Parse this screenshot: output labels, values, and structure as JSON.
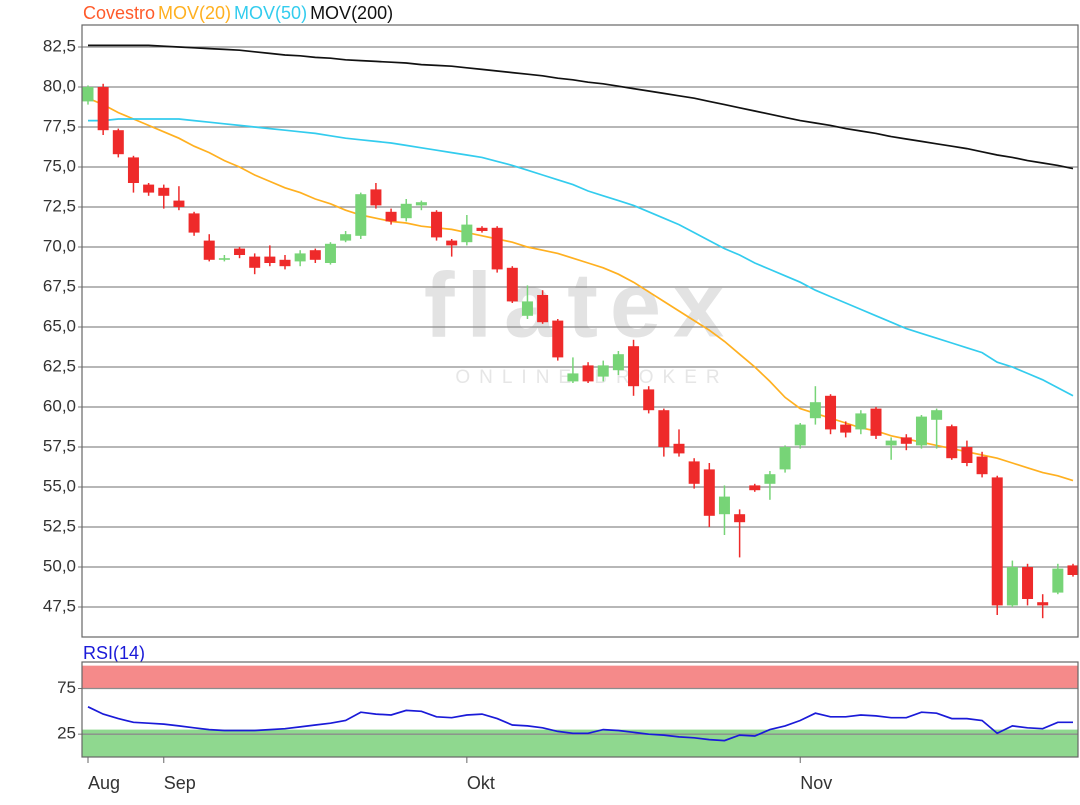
{
  "chart_data": [
    {
      "type": "candlestick",
      "name": "Covestro",
      "name_color": "#ff5a2a",
      "up_color": "#77d477",
      "down_color": "#ee2a2a",
      "open": [
        79.1,
        80.0,
        77.3,
        75.6,
        73.9,
        73.7,
        72.9,
        72.1,
        70.4,
        69.2,
        69.9,
        69.4,
        69.4,
        69.2,
        69.1,
        69.8,
        69.0,
        70.4,
        70.7,
        73.6,
        72.2,
        71.8,
        72.6,
        72.2,
        70.4,
        70.3,
        71.2,
        71.2,
        68.7,
        65.7,
        67.0,
        65.4,
        61.6,
        62.6,
        61.9,
        62.3,
        63.8,
        61.1,
        59.8,
        57.7,
        56.6,
        56.1,
        53.3,
        53.3,
        55.1,
        55.2,
        56.1,
        57.6,
        59.3,
        60.7,
        58.9,
        58.6,
        59.9,
        57.6,
        58.1,
        57.6,
        59.2,
        58.8,
        57.5,
        56.9,
        55.6,
        47.6,
        50.0,
        47.8,
        48.4,
        50.1
      ],
      "high": [
        80.1,
        80.2,
        77.4,
        75.7,
        74.0,
        73.9,
        73.8,
        72.2,
        70.8,
        69.5,
        70.0,
        69.6,
        70.1,
        69.5,
        69.8,
        69.9,
        70.3,
        71.0,
        73.4,
        74.0,
        72.4,
        73.0,
        72.9,
        72.3,
        70.5,
        72.0,
        71.3,
        71.3,
        68.8,
        67.6,
        67.3,
        65.5,
        63.1,
        62.8,
        62.9,
        63.5,
        64.2,
        61.3,
        59.9,
        58.6,
        56.8,
        56.5,
        55.1,
        53.6,
        55.2,
        56.0,
        57.6,
        59.0,
        61.3,
        60.8,
        59.1,
        59.8,
        60.0,
        58.1,
        58.3,
        59.5,
        59.9,
        58.9,
        57.9,
        57.2,
        55.7,
        50.4,
        50.2,
        48.3,
        50.2,
        50.2
      ],
      "low": [
        78.9,
        77.0,
        75.6,
        73.4,
        73.2,
        72.4,
        72.3,
        70.7,
        69.1,
        69.1,
        69.3,
        68.3,
        68.8,
        68.6,
        68.8,
        69.0,
        68.9,
        70.3,
        70.5,
        72.4,
        71.4,
        71.6,
        72.3,
        70.4,
        69.4,
        70.1,
        70.9,
        68.4,
        66.5,
        65.5,
        65.2,
        62.9,
        61.5,
        61.5,
        61.6,
        62.0,
        60.7,
        59.6,
        56.9,
        56.9,
        54.9,
        52.5,
        52.0,
        50.6,
        54.7,
        54.2,
        55.9,
        57.4,
        58.9,
        58.3,
        58.1,
        58.3,
        58.0,
        56.7,
        57.3,
        57.4,
        57.4,
        56.7,
        56.3,
        55.6,
        47.0,
        47.5,
        47.6,
        46.8,
        48.3,
        49.4
      ],
      "close": [
        80.0,
        77.3,
        75.8,
        74.0,
        73.4,
        73.2,
        72.5,
        70.9,
        69.2,
        69.3,
        69.5,
        68.7,
        69.0,
        68.8,
        69.6,
        69.2,
        70.2,
        70.8,
        73.3,
        72.6,
        71.6,
        72.7,
        72.8,
        70.6,
        70.1,
        71.4,
        71.0,
        68.6,
        66.6,
        66.6,
        65.3,
        63.1,
        62.1,
        61.6,
        62.6,
        63.3,
        61.3,
        59.8,
        57.5,
        57.1,
        55.2,
        53.2,
        54.4,
        52.8,
        54.8,
        55.8,
        57.5,
        58.9,
        60.3,
        58.6,
        58.4,
        59.6,
        58.2,
        57.9,
        57.7,
        59.4,
        59.8,
        56.8,
        56.5,
        55.8,
        47.6,
        50.0,
        48.0,
        47.6,
        49.9,
        49.5
      ],
      "series": [
        {
          "name": "MOV(20)",
          "color": "#ffb020",
          "values": [
            79.3,
            78.9,
            78.4,
            78.0,
            77.6,
            77.2,
            76.8,
            76.3,
            75.9,
            75.4,
            75.0,
            74.5,
            74.1,
            73.7,
            73.4,
            73.0,
            72.7,
            72.3,
            72.0,
            71.8,
            71.6,
            71.5,
            71.3,
            71.2,
            71.1,
            70.9,
            70.7,
            70.5,
            70.3,
            70.0,
            69.8,
            69.6,
            69.3,
            69.0,
            68.7,
            68.3,
            67.8,
            67.2,
            66.6,
            66.0,
            65.4,
            64.8,
            64.1,
            63.3,
            62.5,
            61.6,
            60.6,
            59.9,
            59.6,
            59.3,
            59.0,
            58.7,
            58.5,
            58.2,
            58.0,
            57.8,
            57.6,
            57.4,
            57.2,
            57.0,
            56.8,
            56.5,
            56.2,
            55.9,
            55.7,
            55.4
          ]
        },
        {
          "name": "MOV(50)",
          "color": "#33ccee",
          "values": [
            77.9,
            77.9,
            78.0,
            78.0,
            78.0,
            78.0,
            78.0,
            77.9,
            77.8,
            77.7,
            77.6,
            77.5,
            77.4,
            77.3,
            77.2,
            77.1,
            76.95,
            76.8,
            76.7,
            76.6,
            76.5,
            76.35,
            76.2,
            76.05,
            75.9,
            75.75,
            75.6,
            75.35,
            75.1,
            74.8,
            74.5,
            74.2,
            73.9,
            73.5,
            73.2,
            72.9,
            72.6,
            72.2,
            71.8,
            71.4,
            70.9,
            70.4,
            69.9,
            69.5,
            69.0,
            68.6,
            68.2,
            67.8,
            67.3,
            66.9,
            66.5,
            66.1,
            65.7,
            65.3,
            64.9,
            64.6,
            64.3,
            64.0,
            63.7,
            63.4,
            62.8,
            62.5,
            62.1,
            61.7,
            61.2,
            60.7
          ]
        },
        {
          "name": "MOV(200)",
          "color": "#111111",
          "values": [
            82.6,
            82.6,
            82.6,
            82.6,
            82.6,
            82.55,
            82.5,
            82.45,
            82.4,
            82.35,
            82.3,
            82.2,
            82.1,
            82.0,
            81.95,
            81.85,
            81.8,
            81.7,
            81.65,
            81.6,
            81.55,
            81.5,
            81.4,
            81.35,
            81.3,
            81.2,
            81.1,
            81.0,
            80.9,
            80.8,
            80.7,
            80.55,
            80.45,
            80.3,
            80.2,
            80.05,
            79.9,
            79.75,
            79.6,
            79.45,
            79.3,
            79.1,
            78.9,
            78.7,
            78.5,
            78.3,
            78.1,
            77.9,
            77.75,
            77.6,
            77.4,
            77.25,
            77.1,
            76.9,
            76.75,
            76.6,
            76.45,
            76.3,
            76.15,
            75.95,
            75.75,
            75.6,
            75.4,
            75.25,
            75.1,
            74.9
          ]
        }
      ],
      "ylim": [
        45.625,
        83.875
      ],
      "yticks": [
        {
          "value": 47.5,
          "label": "47,5"
        },
        {
          "value": 50,
          "label": "50,0"
        },
        {
          "value": 52.5,
          "label": "52,5"
        },
        {
          "value": 55,
          "label": "55,0"
        },
        {
          "value": 57.5,
          "label": "57,5"
        },
        {
          "value": 60,
          "label": "60,0"
        },
        {
          "value": 62.5,
          "label": "62,5"
        },
        {
          "value": 65,
          "label": "65,0"
        },
        {
          "value": 67.5,
          "label": "67,5"
        },
        {
          "value": 70,
          "label": "70,0"
        },
        {
          "value": 72.5,
          "label": "72,5"
        },
        {
          "value": 75,
          "label": "75,0"
        },
        {
          "value": 77.5,
          "label": "77,5"
        },
        {
          "value": 80,
          "label": "80,0"
        },
        {
          "value": 82.5,
          "label": "82,5"
        }
      ],
      "grid": true,
      "watermark": {
        "title": "flatex",
        "subtitle": "ONLINE BROKER"
      }
    },
    {
      "type": "line",
      "categories": [
        "Aug",
        null,
        null,
        null,
        null,
        "Sep",
        null,
        null,
        null,
        null,
        null,
        null,
        null,
        null,
        null,
        null,
        null,
        null,
        null,
        null,
        null,
        null,
        null,
        null,
        null,
        "Okt",
        null,
        null,
        null,
        null,
        null,
        null,
        null,
        null,
        null,
        null,
        null,
        null,
        null,
        null,
        null,
        null,
        null,
        null,
        null,
        null,
        null,
        "Nov",
        null,
        null,
        null,
        null,
        null,
        null,
        null,
        null,
        null,
        null,
        null,
        null,
        null,
        null,
        null,
        null,
        null,
        null
      ],
      "series": [
        {
          "name": "RSI(14)",
          "color": "#1a1ad8",
          "values": [
            55,
            47,
            42,
            38,
            37,
            36,
            34,
            32,
            30,
            29,
            29,
            29,
            30,
            31,
            33,
            35,
            37,
            40,
            49,
            47,
            46,
            51,
            50,
            44,
            43,
            46,
            47,
            42,
            35,
            34,
            32,
            28,
            26,
            26,
            30,
            29,
            27,
            25,
            24,
            22,
            21,
            19,
            18,
            24,
            23,
            30,
            34,
            40,
            48,
            44,
            44,
            46,
            45,
            43,
            43,
            49,
            48,
            42,
            42,
            40,
            26,
            34,
            32,
            31,
            38,
            38
          ]
        }
      ],
      "ylim": [
        0,
        104
      ],
      "yticks": [
        25,
        75
      ],
      "grid": true,
      "bands": [
        {
          "range": [
            75,
            100
          ],
          "color": "#f58a8a"
        },
        {
          "range": [
            0,
            30
          ],
          "color": "#8fd88f"
        }
      ]
    }
  ]
}
